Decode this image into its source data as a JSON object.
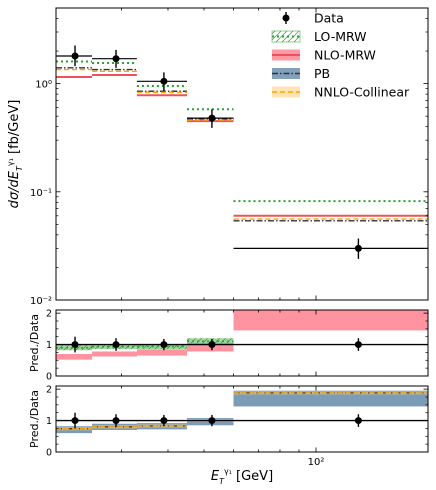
{
  "chart_data": {
    "type": "histogram-ratio",
    "x_scale": "log",
    "x_edges": [
      20,
      25,
      33,
      45,
      60,
      200
    ],
    "x_tick_labels": [
      {
        "value": 100,
        "label": "10²"
      }
    ],
    "xlabel": {
      "main": "E",
      "sub": "T",
      "sup": "γ₁",
      "unit": " [GeV]"
    },
    "colors": {
      "data": "#000000",
      "lo": "#2ca02c",
      "nlo": "#f0525d",
      "pb": "#4a7ea0",
      "nnlo": "#ffa500"
    },
    "main_panel": {
      "y_scale": "log",
      "ylim": [
        0.01,
        5
      ],
      "y_tick_labels": [
        {
          "value": 1,
          "label": "10⁰"
        },
        {
          "value": 0.1,
          "label": "10⁻¹"
        },
        {
          "value": 0.01,
          "label": "10⁻²"
        }
      ],
      "ylabel": {
        "main": "dσ/dE",
        "sub": "T",
        "sup": "γ₁",
        "unit": " [fb/GeV]"
      },
      "legend": {
        "placement": "top-right",
        "entries": [
          {
            "key": "data",
            "label": "Data"
          },
          {
            "key": "lo",
            "label": "LO-MRW"
          },
          {
            "key": "nlo",
            "label": "NLO-MRW"
          },
          {
            "key": "pb",
            "label": "PB"
          },
          {
            "key": "nnlo",
            "label": "NNLO-Collinear"
          }
        ]
      },
      "data": {
        "x": [
          22.5,
          29,
          39,
          52.5,
          130
        ],
        "y": [
          1.8,
          1.7,
          1.05,
          0.48,
          0.03
        ],
        "yerr_low": [
          0.35,
          0.3,
          0.2,
          0.09,
          0.006
        ],
        "yerr_high": [
          0.45,
          0.35,
          0.22,
          0.1,
          0.007
        ]
      },
      "series": [
        {
          "key": "lo",
          "values": [
            1.6,
            1.55,
            0.95,
            0.58,
            0.082
          ]
        },
        {
          "key": "nlo",
          "values": [
            1.15,
            1.2,
            0.78,
            0.45,
            0.06
          ]
        },
        {
          "key": "pb",
          "values": [
            1.4,
            1.35,
            0.85,
            0.47,
            0.054
          ]
        },
        {
          "key": "nnlo",
          "values": [
            1.35,
            1.3,
            0.83,
            0.46,
            0.056
          ]
        }
      ]
    },
    "ratio_panels": [
      {
        "ylabel": "Pred./Data",
        "ylim": [
          0,
          2.1
        ],
        "y_ticks": [
          0,
          1,
          2
        ],
        "data": {
          "x": [
            22.5,
            29,
            39,
            52.5,
            130
          ],
          "y": [
            1,
            1,
            1,
            1,
            1
          ],
          "yerr": [
            0.25,
            0.2,
            0.18,
            0.18,
            0.2
          ]
        },
        "bands": [
          {
            "key": "lo",
            "low": [
              0.82,
              0.86,
              0.86,
              1.0
            ],
            "high": [
              0.98,
              1.0,
              1.02,
              1.2
            ],
            "hatch": true
          },
          {
            "key": "nlo",
            "low": [
              0.52,
              0.62,
              0.65,
              0.78
            ],
            "high": [
              0.7,
              0.78,
              0.85,
              1.05
            ],
            "extra_bin": {
              "low": 1.45,
              "high": 2.1
            }
          }
        ]
      },
      {
        "ylabel": "Pred./Data",
        "ylim": [
          0,
          2.1
        ],
        "y_ticks": [
          0,
          1,
          2
        ],
        "data": {
          "x": [
            22.5,
            29,
            39,
            52.5,
            130
          ],
          "y": [
            1,
            1,
            1,
            1,
            1
          ],
          "yerr": [
            0.25,
            0.2,
            0.18,
            0.18,
            0.2
          ]
        },
        "bands": [
          {
            "key": "pb",
            "low": [
              0.6,
              0.7,
              0.72,
              0.85,
              1.45
            ],
            "high": [
              0.82,
              0.9,
              0.92,
              1.08,
              1.95
            ]
          },
          {
            "key": "nnlo",
            "center": [
              0.74,
              0.8,
              0.83,
              1.0,
              1.88
            ],
            "half_width": 0.05
          }
        ]
      }
    ]
  }
}
